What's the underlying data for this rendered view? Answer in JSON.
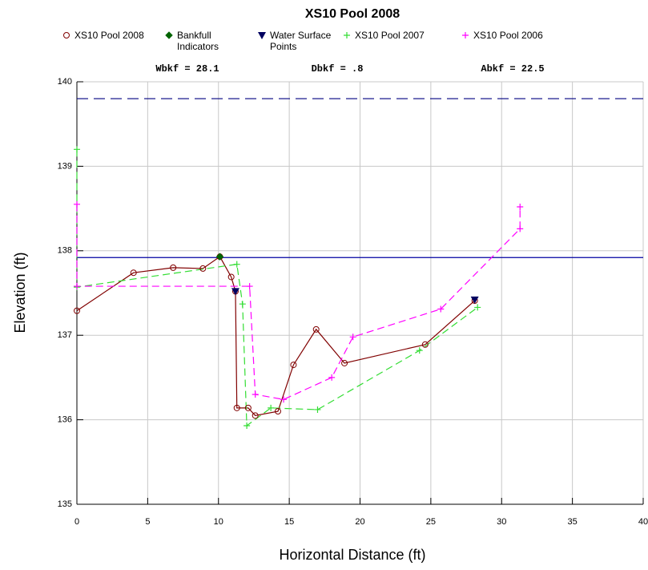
{
  "chart_data": {
    "type": "line",
    "title": "XS10 Pool 2008",
    "x_label": "Horizontal Distance (ft)",
    "y_label": "Elevation (ft)",
    "annotations": [
      "Wbkf = 28.1",
      "Dbkf = .8",
      "Abkf = 22.5"
    ],
    "xlim": [
      0,
      40
    ],
    "xticks": [
      0,
      5,
      10,
      15,
      20,
      25,
      30,
      35,
      40
    ],
    "ylim": [
      135,
      140
    ],
    "yticks": [
      135,
      136,
      137,
      138,
      139,
      140
    ],
    "grid": true,
    "reference_lines": [
      {
        "y": 139.8,
        "color": "#000080",
        "style": "dashed"
      },
      {
        "y": 137.92,
        "color": "#0000a0",
        "style": "solid"
      }
    ],
    "series": [
      {
        "name": "XS10 Pool 2008",
        "color": "#800000",
        "marker": "circle",
        "line": "solid",
        "x": [
          0,
          4.0,
          6.8,
          8.9,
          10.1,
          10.9,
          11.2,
          11.3,
          12.1,
          12.6,
          14.2,
          15.3,
          16.9,
          18.9,
          24.6,
          28.1
        ],
        "values": [
          137.29,
          137.74,
          137.8,
          137.79,
          137.93,
          137.69,
          137.52,
          136.14,
          136.14,
          136.05,
          136.1,
          136.65,
          137.07,
          136.67,
          136.89,
          137.41
        ]
      },
      {
        "name": "Bankfull Indicators",
        "color": "#006400",
        "marker": "diamond",
        "line": "none",
        "x": [
          10.1
        ],
        "values": [
          137.93
        ]
      },
      {
        "name": "Water Surface Points",
        "color": "#000060",
        "marker": "triangle",
        "line": "none",
        "x": [
          11.2,
          28.1
        ],
        "values": [
          137.52,
          137.42
        ]
      },
      {
        "name": "XS10 Pool 2007",
        "color": "#33dd33",
        "marker": "plus",
        "line": "dashed",
        "x": [
          0,
          0,
          11.3,
          11.7,
          12.0,
          13.7,
          17.0,
          24.2,
          28.3
        ],
        "values": [
          139.2,
          137.57,
          137.84,
          137.37,
          135.93,
          136.14,
          136.12,
          136.82,
          137.33
        ]
      },
      {
        "name": "XS10 Pool 2006",
        "color": "#ff00ff",
        "marker": "plus",
        "line": "dashed",
        "x": [
          0,
          0,
          12.2,
          12.6,
          14.6,
          18.0,
          19.5,
          25.7,
          31.3,
          31.3
        ],
        "values": [
          138.55,
          137.58,
          137.58,
          136.3,
          136.24,
          136.5,
          136.98,
          137.31,
          138.26,
          138.52
        ]
      }
    ]
  }
}
